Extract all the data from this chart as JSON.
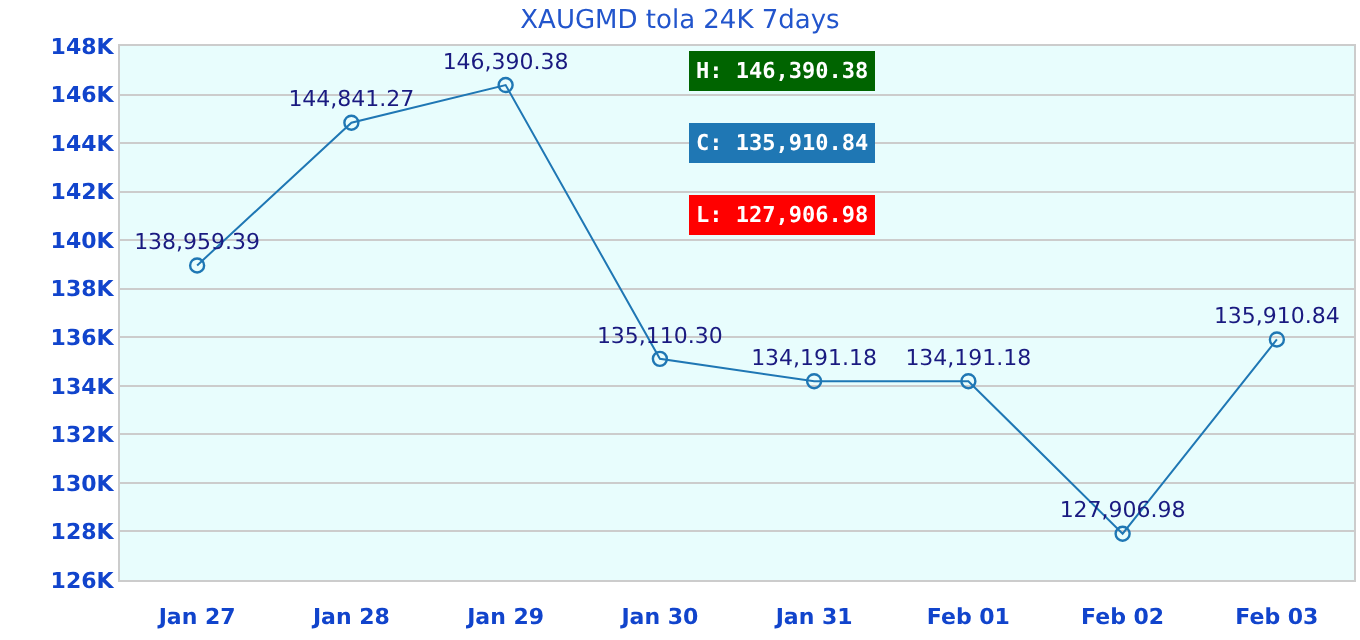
{
  "chart_data": {
    "type": "line",
    "title": "XAUGMD tola 24K 7days",
    "categories": [
      "Jan 27",
      "Jan 28",
      "Jan 29",
      "Jan 30",
      "Jan 31",
      "Feb 01",
      "Feb 02",
      "Feb 03"
    ],
    "series": [
      {
        "color": "#1f77b4",
        "values": [
          138959.39,
          144841.27,
          146390.38,
          135110.3,
          134191.18,
          134191.18,
          127906.98,
          135910.84
        ],
        "value_labels": [
          "138,959.39",
          "144,841.27",
          "146,390.38",
          "135,110.30",
          "134,191.18",
          "134,191.18",
          "127,906.98",
          "135,910.84"
        ]
      }
    ],
    "ylim": [
      126000,
      148000
    ],
    "yticks": [
      {
        "value": 126000,
        "label": "126K"
      },
      {
        "value": 128000,
        "label": "128K"
      },
      {
        "value": 130000,
        "label": "130K"
      },
      {
        "value": 132000,
        "label": "132K"
      },
      {
        "value": 134000,
        "label": "134K"
      },
      {
        "value": 136000,
        "label": "136K"
      },
      {
        "value": 138000,
        "label": "138K"
      },
      {
        "value": 140000,
        "label": "140K"
      },
      {
        "value": 142000,
        "label": "142K"
      },
      {
        "value": 144000,
        "label": "144K"
      },
      {
        "value": 146000,
        "label": "146K"
      },
      {
        "value": 148000,
        "label": "148K"
      }
    ],
    "grid": "y",
    "marker": "circle",
    "line_style": "solid",
    "annotations": [
      "H: 146,390.38",
      "C: 135,910.84",
      "L: 127,906.98"
    ]
  }
}
